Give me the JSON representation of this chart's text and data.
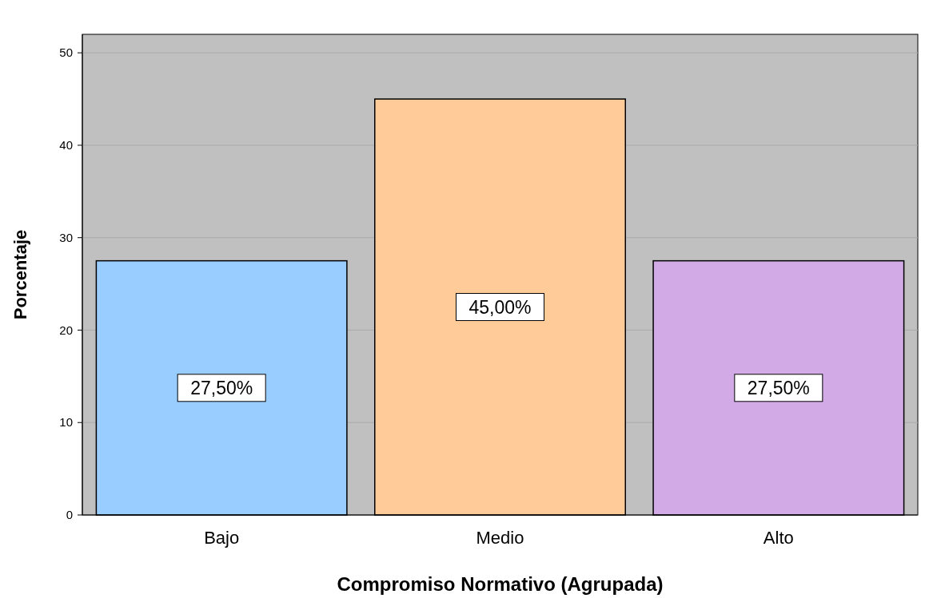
{
  "chart_data": {
    "type": "bar",
    "xlabel": "Compromiso Normativo (Agrupada)",
    "ylabel": "Porcentaje",
    "categories": [
      "Bajo",
      "Medio",
      "Alto"
    ],
    "values": [
      27.5,
      45,
      27.5
    ],
    "colors": [
      "#99ccff",
      "#ffcc99",
      "#d1aae6"
    ],
    "value_labels": [
      "27,50%",
      "45,00%",
      "27,50%"
    ],
    "ylim": [
      0,
      52
    ],
    "yticks": [
      0,
      10,
      20,
      30,
      40,
      50
    ],
    "grid": "y"
  }
}
